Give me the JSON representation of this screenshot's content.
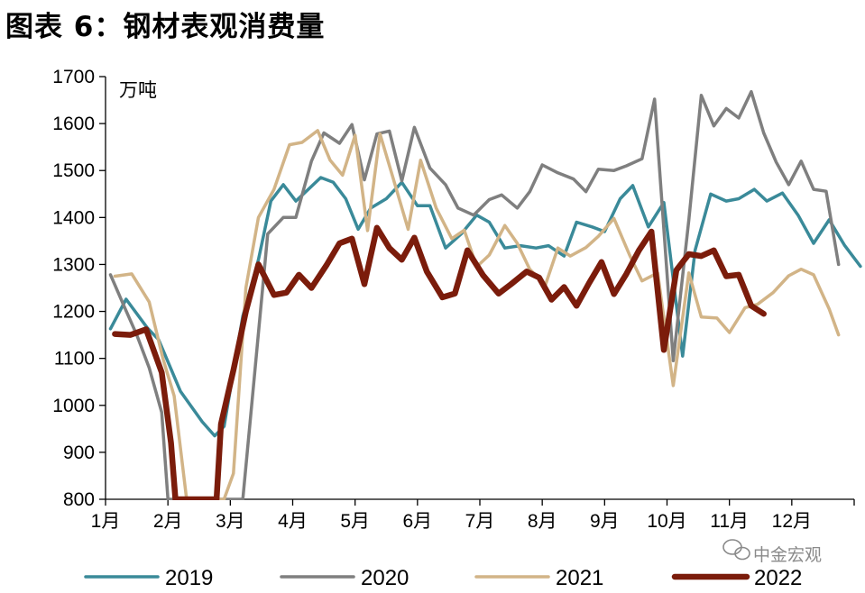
{
  "title": "图表 6：钢材表观消费量",
  "watermark": "中金宏观",
  "chart_data": {
    "type": "line",
    "title": "图表 6：钢材表观消费量",
    "ylabel": "万吨",
    "xlabel": "",
    "ylim": [
      800,
      1700
    ],
    "yticks": [
      "800",
      "900",
      "1000",
      "1100",
      "1200",
      "1300",
      "1400",
      "1500",
      "1600",
      "1700"
    ],
    "xlim": [
      1,
      13
    ],
    "xticks": [
      "1月",
      "2月",
      "3月",
      "4月",
      "5月",
      "6月",
      "7月",
      "8月",
      "9月",
      "10月",
      "11月",
      "12月"
    ],
    "grid": false,
    "legend_position": "bottom",
    "series": [
      {
        "name": "2019",
        "color": "#3a8a99",
        "width": 3.5,
        "points": [
          [
            1.08,
            1163
          ],
          [
            1.33,
            1226
          ],
          [
            1.67,
            1165
          ],
          [
            1.85,
            1140
          ],
          [
            2.2,
            1030
          ],
          [
            2.55,
            965
          ],
          [
            2.75,
            935
          ],
          [
            2.9,
            955
          ],
          [
            3.2,
            1190
          ],
          [
            3.45,
            1310
          ],
          [
            3.65,
            1435
          ],
          [
            3.85,
            1470
          ],
          [
            4.05,
            1435
          ],
          [
            4.25,
            1460
          ],
          [
            4.45,
            1485
          ],
          [
            4.65,
            1475
          ],
          [
            4.85,
            1440
          ],
          [
            5.05,
            1375
          ],
          [
            5.25,
            1420
          ],
          [
            5.5,
            1440
          ],
          [
            5.75,
            1475
          ],
          [
            6.0,
            1425
          ],
          [
            6.2,
            1425
          ],
          [
            6.45,
            1335
          ],
          [
            6.7,
            1365
          ],
          [
            6.95,
            1405
          ],
          [
            7.15,
            1390
          ],
          [
            7.4,
            1335
          ],
          [
            7.65,
            1340
          ],
          [
            7.9,
            1335
          ],
          [
            8.1,
            1340
          ],
          [
            8.35,
            1318
          ],
          [
            8.55,
            1390
          ],
          [
            8.8,
            1380
          ],
          [
            9.0,
            1370
          ],
          [
            9.25,
            1440
          ],
          [
            9.45,
            1468
          ],
          [
            9.7,
            1380
          ],
          [
            9.95,
            1432
          ],
          [
            10.25,
            1105
          ],
          [
            10.45,
            1330
          ],
          [
            10.7,
            1450
          ],
          [
            10.95,
            1435
          ],
          [
            11.15,
            1440
          ],
          [
            11.4,
            1460
          ],
          [
            11.6,
            1435
          ],
          [
            11.85,
            1452
          ],
          [
            12.1,
            1405
          ],
          [
            12.35,
            1345
          ],
          [
            12.6,
            1395
          ],
          [
            12.85,
            1340
          ],
          [
            13.1,
            1296
          ]
        ]
      },
      {
        "name": "2020",
        "color": "#7f7f7f",
        "width": 3.5,
        "points": [
          [
            1.08,
            1278
          ],
          [
            1.3,
            1210
          ],
          [
            1.5,
            1150
          ],
          [
            1.7,
            1080
          ],
          [
            1.9,
            985
          ],
          [
            2.0,
            800
          ],
          [
            2.9,
            800
          ],
          [
            3.2,
            800
          ],
          [
            3.35,
            1010
          ],
          [
            3.6,
            1365
          ],
          [
            3.85,
            1400
          ],
          [
            4.05,
            1400
          ],
          [
            4.3,
            1520
          ],
          [
            4.5,
            1580
          ],
          [
            4.75,
            1558
          ],
          [
            4.95,
            1598
          ],
          [
            5.15,
            1480
          ],
          [
            5.35,
            1578
          ],
          [
            5.55,
            1584
          ],
          [
            5.75,
            1478
          ],
          [
            5.95,
            1592
          ],
          [
            6.2,
            1505
          ],
          [
            6.45,
            1470
          ],
          [
            6.65,
            1420
          ],
          [
            6.9,
            1405
          ],
          [
            7.15,
            1438
          ],
          [
            7.35,
            1448
          ],
          [
            7.6,
            1420
          ],
          [
            7.8,
            1455
          ],
          [
            8.0,
            1512
          ],
          [
            8.25,
            1495
          ],
          [
            8.5,
            1482
          ],
          [
            8.7,
            1455
          ],
          [
            8.9,
            1503
          ],
          [
            9.15,
            1500
          ],
          [
            9.35,
            1510
          ],
          [
            9.6,
            1525
          ],
          [
            9.8,
            1652
          ],
          [
            10.1,
            1095
          ],
          [
            10.35,
            1395
          ],
          [
            10.55,
            1660
          ],
          [
            10.75,
            1595
          ],
          [
            10.95,
            1632
          ],
          [
            11.15,
            1612
          ],
          [
            11.35,
            1668
          ],
          [
            11.55,
            1580
          ],
          [
            11.75,
            1518
          ],
          [
            11.95,
            1470
          ],
          [
            12.15,
            1520
          ],
          [
            12.35,
            1460
          ],
          [
            12.55,
            1456
          ],
          [
            12.75,
            1300
          ]
        ]
      },
      {
        "name": "2021",
        "color": "#d2b487",
        "width": 3.5,
        "points": [
          [
            1.15,
            1275
          ],
          [
            1.42,
            1280
          ],
          [
            1.7,
            1220
          ],
          [
            1.92,
            1100
          ],
          [
            2.1,
            1020
          ],
          [
            2.3,
            800
          ],
          [
            2.9,
            800
          ],
          [
            3.05,
            855
          ],
          [
            3.25,
            1250
          ],
          [
            3.45,
            1400
          ],
          [
            3.7,
            1460
          ],
          [
            3.95,
            1555
          ],
          [
            4.15,
            1560
          ],
          [
            4.4,
            1585
          ],
          [
            4.6,
            1522
          ],
          [
            4.8,
            1490
          ],
          [
            5.0,
            1575
          ],
          [
            5.2,
            1372
          ],
          [
            5.4,
            1578
          ],
          [
            5.6,
            1488
          ],
          [
            5.85,
            1375
          ],
          [
            6.05,
            1522
          ],
          [
            6.3,
            1420
          ],
          [
            6.55,
            1355
          ],
          [
            6.75,
            1373
          ],
          [
            6.95,
            1295
          ],
          [
            7.15,
            1320
          ],
          [
            7.4,
            1383
          ],
          [
            7.6,
            1345
          ],
          [
            7.8,
            1290
          ],
          [
            8.05,
            1256
          ],
          [
            8.25,
            1335
          ],
          [
            8.45,
            1318
          ],
          [
            8.7,
            1336
          ],
          [
            8.9,
            1360
          ],
          [
            9.15,
            1398
          ],
          [
            9.4,
            1320
          ],
          [
            9.6,
            1265
          ],
          [
            9.85,
            1282
          ],
          [
            10.1,
            1042
          ],
          [
            10.35,
            1282
          ],
          [
            10.55,
            1188
          ],
          [
            10.8,
            1186
          ],
          [
            11.0,
            1155
          ],
          [
            11.25,
            1208
          ],
          [
            11.45,
            1215
          ],
          [
            11.7,
            1240
          ],
          [
            11.95,
            1276
          ],
          [
            12.15,
            1290
          ],
          [
            12.35,
            1278
          ],
          [
            12.6,
            1205
          ],
          [
            12.75,
            1150
          ]
        ]
      },
      {
        "name": "2022",
        "color": "#7b1c0b",
        "width": 6.5,
        "points": [
          [
            1.15,
            1152
          ],
          [
            1.4,
            1150
          ],
          [
            1.65,
            1162
          ],
          [
            1.9,
            1070
          ],
          [
            2.05,
            920
          ],
          [
            2.12,
            800
          ],
          [
            2.78,
            800
          ],
          [
            2.85,
            960
          ],
          [
            3.05,
            1075
          ],
          [
            3.25,
            1200
          ],
          [
            3.45,
            1300
          ],
          [
            3.7,
            1235
          ],
          [
            3.9,
            1240
          ],
          [
            4.1,
            1278
          ],
          [
            4.3,
            1250
          ],
          [
            4.55,
            1300
          ],
          [
            4.75,
            1345
          ],
          [
            4.95,
            1355
          ],
          [
            5.15,
            1258
          ],
          [
            5.35,
            1378
          ],
          [
            5.55,
            1335
          ],
          [
            5.75,
            1310
          ],
          [
            5.95,
            1357
          ],
          [
            6.15,
            1285
          ],
          [
            6.4,
            1230
          ],
          [
            6.6,
            1238
          ],
          [
            6.8,
            1330
          ],
          [
            7.05,
            1277
          ],
          [
            7.3,
            1238
          ],
          [
            7.5,
            1258
          ],
          [
            7.75,
            1285
          ],
          [
            7.95,
            1272
          ],
          [
            8.15,
            1225
          ],
          [
            8.35,
            1252
          ],
          [
            8.55,
            1212
          ],
          [
            8.75,
            1260
          ],
          [
            8.95,
            1305
          ],
          [
            9.15,
            1237
          ],
          [
            9.35,
            1280
          ],
          [
            9.55,
            1330
          ],
          [
            9.75,
            1370
          ],
          [
            9.95,
            1118
          ],
          [
            10.15,
            1288
          ],
          [
            10.35,
            1322
          ],
          [
            10.55,
            1318
          ],
          [
            10.75,
            1330
          ],
          [
            10.95,
            1275
          ],
          [
            11.15,
            1278
          ],
          [
            11.35,
            1212
          ],
          [
            11.55,
            1195
          ]
        ]
      }
    ]
  }
}
